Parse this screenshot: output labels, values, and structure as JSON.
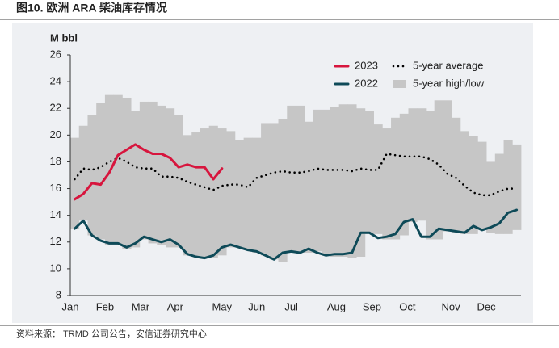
{
  "chart_data": {
    "type": "line",
    "title": "图10. 欧洲 ARA 柴油库存情况",
    "y_label": "M bbl",
    "source": "资料来源： TRMD 公司公告，安信证券研究中心",
    "x": [
      1,
      2,
      3,
      4,
      5,
      6,
      7,
      8,
      9,
      10,
      11,
      12,
      13,
      14,
      15,
      16,
      17,
      18,
      19,
      20,
      21,
      22,
      23,
      24,
      25,
      26,
      27,
      28,
      29,
      30,
      31,
      32,
      33,
      34,
      35,
      36,
      37,
      38,
      39,
      40,
      41,
      42,
      43,
      44,
      45,
      46,
      47,
      48,
      49,
      50,
      51,
      52
    ],
    "xlim": [
      0.5,
      52.5
    ],
    "xticks": [
      {
        "value": 0.5,
        "label": "Jan"
      },
      {
        "value": 4.5,
        "label": "Feb"
      },
      {
        "value": 8.6,
        "label": "Mar"
      },
      {
        "value": 12.6,
        "label": "Apr"
      },
      {
        "value": 18,
        "label": "May"
      },
      {
        "value": 22,
        "label": "Jun"
      },
      {
        "value": 26,
        "label": "Jul"
      },
      {
        "value": 31.2,
        "label": "Aug"
      },
      {
        "value": 35.3,
        "label": "Sep"
      },
      {
        "value": 39.4,
        "label": "Oct"
      },
      {
        "value": 44.4,
        "label": "Nov"
      },
      {
        "value": 48.5,
        "label": "Dec"
      }
    ],
    "ylim": [
      8,
      26
    ],
    "yticks": [
      8,
      10,
      12,
      14,
      16,
      18,
      20,
      22,
      24,
      26
    ],
    "series": [
      {
        "name": "5-year high/low",
        "kind": "band",
        "color": "#c6c6c6",
        "high": [
          19.8,
          20.7,
          21.5,
          22.4,
          23.0,
          23.0,
          22.8,
          21.8,
          22.5,
          22.5,
          22.2,
          22.0,
          21.5,
          20.0,
          20.2,
          20.5,
          20.7,
          20.5,
          20.3,
          19.6,
          19.8,
          19.8,
          20.9,
          20.9,
          21.2,
          22.2,
          22.2,
          21.0,
          21.9,
          21.9,
          22.1,
          22.3,
          22.3,
          22.0,
          21.8,
          20.8,
          20.5,
          21.3,
          21.6,
          22.0,
          22.0,
          21.8,
          22.6,
          22.6,
          21.3,
          20.3,
          19.9,
          19.5,
          18.0,
          18.6,
          19.6,
          19.3
        ],
        "low": [
          13.0,
          13.6,
          12.5,
          12.2,
          11.8,
          11.8,
          11.5,
          11.6,
          12.2,
          11.9,
          11.8,
          11.6,
          11.6,
          11.0,
          10.9,
          10.8,
          10.8,
          11.0,
          11.6,
          11.6,
          11.4,
          11.2,
          11.0,
          10.7,
          10.5,
          11.2,
          11.2,
          11.2,
          11.3,
          11.0,
          10.9,
          10.9,
          10.8,
          10.9,
          12.6,
          12.6,
          12.2,
          12.2,
          12.5,
          13.5,
          13.6,
          12.2,
          12.2,
          12.8,
          12.7,
          12.6,
          12.6,
          13.0,
          12.7,
          12.6,
          12.6,
          12.9
        ]
      },
      {
        "name": "5-year average",
        "kind": "dotted",
        "color": "#000000",
        "values": [
          16.7,
          17.5,
          17.4,
          17.6,
          18.0,
          18.3,
          18.0,
          17.6,
          17.5,
          17.5,
          16.9,
          16.9,
          16.8,
          16.5,
          16.3,
          16.1,
          15.9,
          16.2,
          16.3,
          16.3,
          16.1,
          16.8,
          17.0,
          17.2,
          17.3,
          17.2,
          17.2,
          17.3,
          17.5,
          17.4,
          17.4,
          17.4,
          17.3,
          17.5,
          17.4,
          17.4,
          18.6,
          18.5,
          18.4,
          18.4,
          18.4,
          18.2,
          17.8,
          17.1,
          16.8,
          16.2,
          15.7,
          15.5,
          15.5,
          15.8,
          16.0,
          16.0
        ]
      },
      {
        "name": "2022",
        "kind": "solid",
        "color": "#0e4a58",
        "values": [
          13.0,
          13.6,
          12.5,
          12.1,
          11.9,
          11.9,
          11.6,
          11.9,
          12.4,
          12.2,
          12.0,
          12.2,
          11.8,
          11.1,
          10.9,
          10.8,
          11.0,
          11.6,
          11.8,
          11.6,
          11.4,
          11.3,
          11.0,
          10.7,
          11.2,
          11.3,
          11.2,
          11.5,
          11.2,
          11.0,
          11.1,
          11.1,
          11.2,
          12.7,
          12.7,
          12.3,
          12.4,
          12.6,
          13.5,
          13.7,
          12.4,
          12.4,
          13.0,
          12.9,
          12.8,
          12.7,
          13.2,
          12.9,
          13.1,
          13.4,
          14.2,
          14.4
        ]
      },
      {
        "name": "2023",
        "kind": "solid",
        "color": "#d7153d",
        "values": [
          15.2,
          15.6,
          16.4,
          16.3,
          17.2,
          18.5,
          18.9,
          19.3,
          18.9,
          18.6,
          18.6,
          18.3,
          17.6,
          17.8,
          17.6,
          17.6,
          16.7,
          17.5,
          null,
          null,
          null,
          null,
          null,
          null,
          null,
          null,
          null,
          null,
          null,
          null,
          null,
          null,
          null,
          null,
          null,
          null,
          null,
          null,
          null,
          null,
          null,
          null,
          null,
          null,
          null,
          null,
          null,
          null,
          null,
          null,
          null,
          null
        ]
      }
    ]
  }
}
